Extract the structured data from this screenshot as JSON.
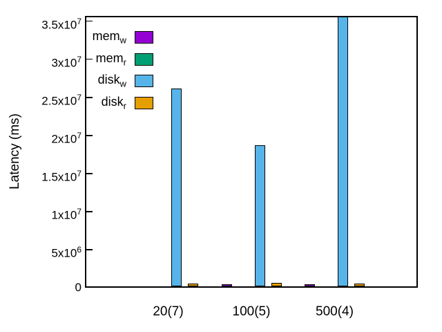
{
  "chart_data": {
    "type": "bar",
    "title": "",
    "xlabel": "",
    "ylabel": "Latency (ms)",
    "categories": [
      "20(7)",
      "100(5)",
      "500(4)"
    ],
    "series": [
      {
        "name": "mem",
        "subscript": "w",
        "color": "#9400D3",
        "values": [
          0,
          250000,
          250000
        ]
      },
      {
        "name": "mem",
        "subscript": "r",
        "color": "#009E73",
        "values": [
          0,
          0,
          0
        ]
      },
      {
        "name": "disk",
        "subscript": "w",
        "color": "#56B4E9",
        "values": [
          26000000,
          18500000,
          35400000
        ]
      },
      {
        "name": "disk",
        "subscript": "r",
        "color": "#E69F00",
        "values": [
          400000,
          500000,
          400000
        ]
      }
    ],
    "yticks": [
      {
        "value": 0,
        "label": "0"
      },
      {
        "value": 5000000,
        "label": "5x10^6"
      },
      {
        "value": 10000000,
        "label": "1x10^7"
      },
      {
        "value": 15000000,
        "label": "1.5x10^7"
      },
      {
        "value": 20000000,
        "label": "2x10^7"
      },
      {
        "value": 25000000,
        "label": "2.5x10^7"
      },
      {
        "value": 30000000,
        "label": "3x10^7"
      },
      {
        "value": 35000000,
        "label": "3.5x10^7"
      }
    ],
    "ylim": [
      0,
      35700000
    ],
    "legend_position": "top-left",
    "grid": false,
    "axis_color": "#000000",
    "bar_border_color": "#000000"
  }
}
